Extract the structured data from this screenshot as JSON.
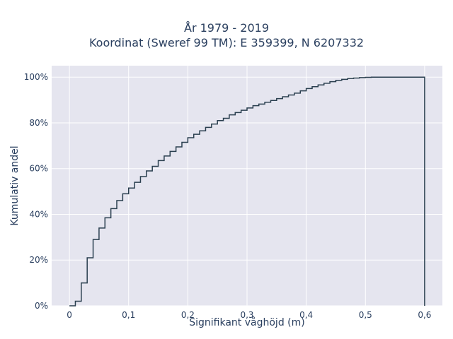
{
  "chart_data": {
    "type": "line",
    "step": true,
    "title": [
      "År 1979 - 2019",
      "Koordinat (Sweref 99 TM): E 359399, N 6207332"
    ],
    "xlabel": "Signifikant våghöjd (m)",
    "ylabel": "Kumulativ andel",
    "xlim": [
      -0.03,
      0.63
    ],
    "ylim": [
      0,
      1.05
    ],
    "xticks": [
      0,
      0.1,
      0.2,
      0.3,
      0.4,
      0.5,
      0.6
    ],
    "xtick_labels": [
      "0",
      "0,1",
      "0,2",
      "0,3",
      "0,4",
      "0,5",
      "0,6"
    ],
    "yticks": [
      0,
      0.2,
      0.4,
      0.6,
      0.8,
      1.0
    ],
    "ytick_labels": [
      "0%",
      "20%",
      "40%",
      "60%",
      "80%",
      "100%"
    ],
    "grid": true,
    "line_color": "#2a3f4f",
    "plot_bg": "#e5e5ef",
    "x": [
      0.0,
      0.01,
      0.02,
      0.03,
      0.04,
      0.05,
      0.06,
      0.07,
      0.08,
      0.09,
      0.1,
      0.11,
      0.12,
      0.13,
      0.14,
      0.15,
      0.16,
      0.17,
      0.18,
      0.19,
      0.2,
      0.21,
      0.22,
      0.23,
      0.24,
      0.25,
      0.26,
      0.27,
      0.28,
      0.29,
      0.3,
      0.31,
      0.32,
      0.33,
      0.34,
      0.35,
      0.36,
      0.37,
      0.38,
      0.39,
      0.4,
      0.41,
      0.42,
      0.43,
      0.44,
      0.45,
      0.46,
      0.47,
      0.48,
      0.49,
      0.5,
      0.51,
      0.52,
      0.53,
      0.54,
      0.55,
      0.56,
      0.57,
      0.58,
      0.59,
      0.6
    ],
    "y": [
      0.0,
      0.02,
      0.1,
      0.21,
      0.29,
      0.34,
      0.385,
      0.425,
      0.46,
      0.49,
      0.515,
      0.54,
      0.565,
      0.59,
      0.61,
      0.635,
      0.655,
      0.675,
      0.695,
      0.715,
      0.735,
      0.75,
      0.765,
      0.78,
      0.795,
      0.81,
      0.82,
      0.835,
      0.845,
      0.855,
      0.865,
      0.875,
      0.882,
      0.89,
      0.898,
      0.906,
      0.914,
      0.922,
      0.93,
      0.94,
      0.95,
      0.958,
      0.966,
      0.973,
      0.98,
      0.986,
      0.99,
      0.994,
      0.996,
      0.998,
      0.999,
      1.0,
      1.0,
      1.0,
      1.0,
      1.0,
      1.0,
      1.0,
      1.0,
      1.0,
      1.0
    ]
  }
}
